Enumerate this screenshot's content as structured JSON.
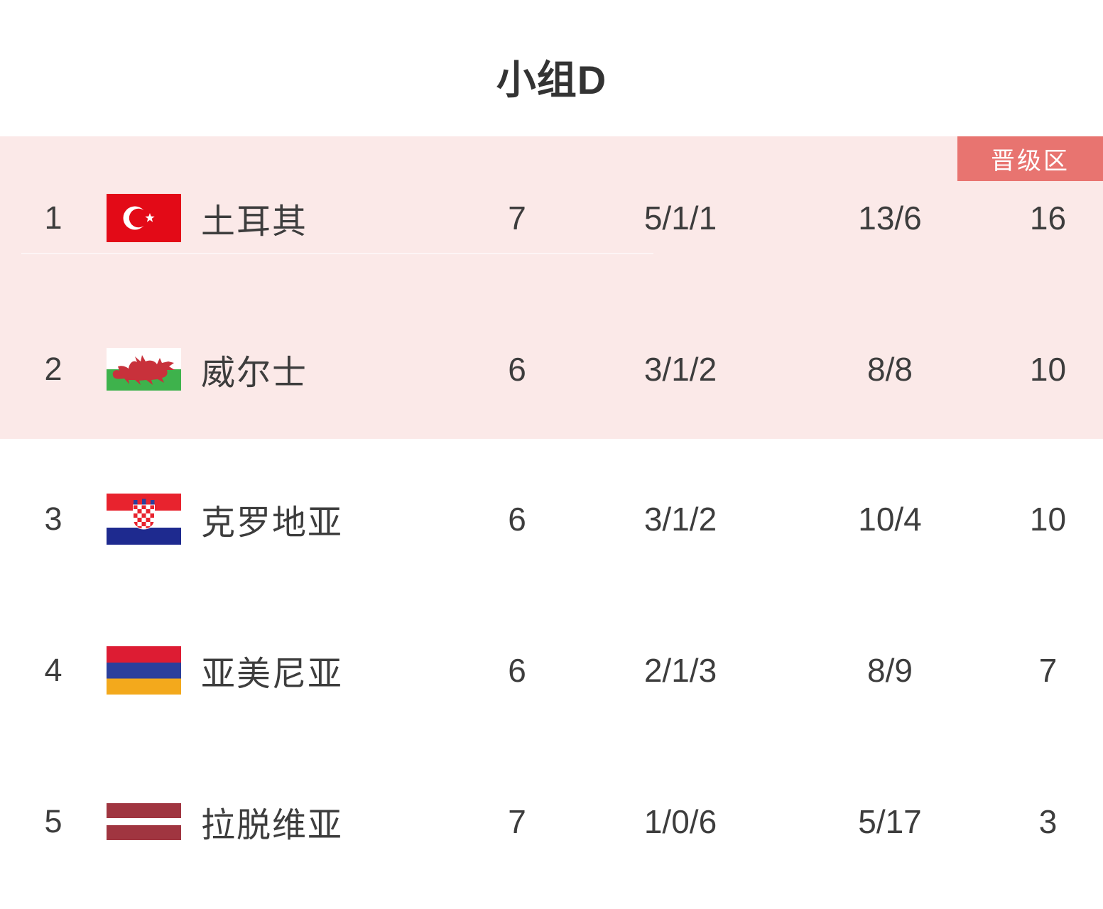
{
  "title": "小组D",
  "badge": {
    "label": "晋级区",
    "bg": "#e87470",
    "color": "#ffffff"
  },
  "colors": {
    "highlight_bg": "#fbe9e8",
    "page_bg": "#ffffff",
    "text": "#3d3d3d"
  },
  "table": {
    "rows": [
      {
        "rank": "1",
        "team": "土耳其",
        "flag": "turkey",
        "played": "7",
        "wdl": "5/1/1",
        "goals": "13/6",
        "points": "16",
        "highlighted": true
      },
      {
        "rank": "2",
        "team": "威尔士",
        "flag": "wales",
        "played": "6",
        "wdl": "3/1/2",
        "goals": "8/8",
        "points": "10",
        "highlighted": true
      },
      {
        "rank": "3",
        "team": "克罗地亚",
        "flag": "croatia",
        "played": "6",
        "wdl": "3/1/2",
        "goals": "10/4",
        "points": "10",
        "highlighted": false
      },
      {
        "rank": "4",
        "team": "亚美尼亚",
        "flag": "armenia",
        "played": "6",
        "wdl": "2/1/3",
        "goals": "8/9",
        "points": "7",
        "highlighted": false
      },
      {
        "rank": "5",
        "team": "拉脱维亚",
        "flag": "latvia",
        "played": "7",
        "wdl": "1/0/6",
        "goals": "5/17",
        "points": "3",
        "highlighted": false
      }
    ]
  }
}
